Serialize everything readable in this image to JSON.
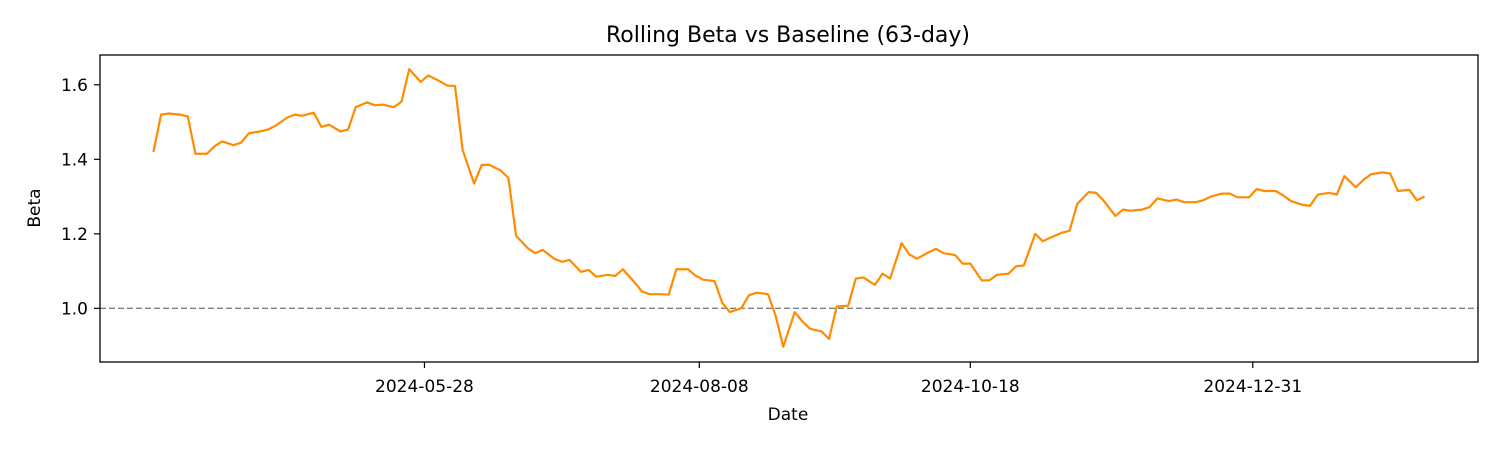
{
  "chart_data": {
    "type": "line",
    "title": "Rolling Beta vs Baseline (63-day)",
    "xlabel": "Date",
    "ylabel": "Beta",
    "xlim": [
      "2024-03-04",
      "2025-02-28"
    ],
    "ylim": [
      0.856,
      1.68
    ],
    "x_ticks": [
      "2024-05-28",
      "2024-08-08",
      "2024-10-18",
      "2024-12-31"
    ],
    "y_ticks": [
      1.0,
      1.2,
      1.4,
      1.6
    ],
    "y_tick_labels": [
      "1.0",
      "1.2",
      "1.4",
      "1.6"
    ],
    "grid": false,
    "legend": "none",
    "baseline": {
      "value": 1.0,
      "style": "dashed",
      "color": "#808080"
    },
    "series": [
      {
        "color": "#ff8c00",
        "points": [
          [
            "2024-03-18",
            1.42
          ],
          [
            "2024-03-20",
            1.52
          ],
          [
            "2024-03-22",
            1.523
          ],
          [
            "2024-03-25",
            1.52
          ],
          [
            "2024-03-27",
            1.515
          ],
          [
            "2024-03-29",
            1.415
          ],
          [
            "2024-04-01",
            1.415
          ],
          [
            "2024-04-03",
            1.435
          ],
          [
            "2024-04-05",
            1.448
          ],
          [
            "2024-04-08",
            1.438
          ],
          [
            "2024-04-10",
            1.445
          ],
          [
            "2024-04-12",
            1.47
          ],
          [
            "2024-04-15",
            1.475
          ],
          [
            "2024-04-17",
            1.48
          ],
          [
            "2024-04-19",
            1.49
          ],
          [
            "2024-04-22",
            1.512
          ],
          [
            "2024-04-24",
            1.52
          ],
          [
            "2024-04-26",
            1.517
          ],
          [
            "2024-04-29",
            1.525
          ],
          [
            "2024-05-01",
            1.487
          ],
          [
            "2024-05-03",
            1.493
          ],
          [
            "2024-05-06",
            1.475
          ],
          [
            "2024-05-08",
            1.48
          ],
          [
            "2024-05-10",
            1.54
          ],
          [
            "2024-05-13",
            1.553
          ],
          [
            "2024-05-15",
            1.545
          ],
          [
            "2024-05-17",
            1.547
          ],
          [
            "2024-05-20",
            1.54
          ],
          [
            "2024-05-22",
            1.555
          ],
          [
            "2024-05-24",
            1.642
          ],
          [
            "2024-05-27",
            1.608
          ],
          [
            "2024-05-29",
            1.625
          ],
          [
            "2024-05-31",
            1.615
          ],
          [
            "2024-06-03",
            1.598
          ],
          [
            "2024-06-05",
            1.597
          ],
          [
            "2024-06-07",
            1.425
          ],
          [
            "2024-06-10",
            1.335
          ],
          [
            "2024-06-12",
            1.385
          ],
          [
            "2024-06-14",
            1.385
          ],
          [
            "2024-06-17",
            1.37
          ],
          [
            "2024-06-19",
            1.35
          ],
          [
            "2024-06-21",
            1.195
          ],
          [
            "2024-06-24",
            1.162
          ],
          [
            "2024-06-26",
            1.148
          ],
          [
            "2024-06-28",
            1.157
          ],
          [
            "2024-07-01",
            1.133
          ],
          [
            "2024-07-03",
            1.125
          ],
          [
            "2024-07-05",
            1.13
          ],
          [
            "2024-07-08",
            1.098
          ],
          [
            "2024-07-10",
            1.103
          ],
          [
            "2024-07-12",
            1.085
          ],
          [
            "2024-07-15",
            1.09
          ],
          [
            "2024-07-17",
            1.087
          ],
          [
            "2024-07-19",
            1.105
          ],
          [
            "2024-07-22",
            1.07
          ],
          [
            "2024-07-24",
            1.045
          ],
          [
            "2024-07-26",
            1.038
          ],
          [
            "2024-07-29",
            1.038
          ],
          [
            "2024-07-31",
            1.037
          ],
          [
            "2024-08-02",
            1.105
          ],
          [
            "2024-08-05",
            1.105
          ],
          [
            "2024-08-07",
            1.088
          ],
          [
            "2024-08-09",
            1.077
          ],
          [
            "2024-08-12",
            1.073
          ],
          [
            "2024-08-14",
            1.015
          ],
          [
            "2024-08-16",
            0.99
          ],
          [
            "2024-08-19",
            1.0
          ],
          [
            "2024-08-21",
            1.035
          ],
          [
            "2024-08-23",
            1.042
          ],
          [
            "2024-08-26",
            1.038
          ],
          [
            "2024-08-28",
            0.98
          ],
          [
            "2024-08-30",
            0.897
          ],
          [
            "2024-09-02",
            0.99
          ],
          [
            "2024-09-04",
            0.965
          ],
          [
            "2024-09-06",
            0.945
          ],
          [
            "2024-09-09",
            0.938
          ],
          [
            "2024-09-11",
            0.918
          ],
          [
            "2024-09-13",
            1.005
          ],
          [
            "2024-09-16",
            1.007
          ],
          [
            "2024-09-18",
            1.08
          ],
          [
            "2024-09-20",
            1.083
          ],
          [
            "2024-09-23",
            1.063
          ],
          [
            "2024-09-25",
            1.093
          ],
          [
            "2024-09-27",
            1.08
          ],
          [
            "2024-09-30",
            1.175
          ],
          [
            "2024-10-02",
            1.145
          ],
          [
            "2024-10-04",
            1.133
          ],
          [
            "2024-10-07",
            1.15
          ],
          [
            "2024-10-09",
            1.16
          ],
          [
            "2024-10-11",
            1.148
          ],
          [
            "2024-10-14",
            1.143
          ],
          [
            "2024-10-16",
            1.12
          ],
          [
            "2024-10-18",
            1.12
          ],
          [
            "2024-10-21",
            1.075
          ],
          [
            "2024-10-23",
            1.075
          ],
          [
            "2024-10-25",
            1.09
          ],
          [
            "2024-10-28",
            1.093
          ],
          [
            "2024-10-30",
            1.113
          ],
          [
            "2024-11-01",
            1.115
          ],
          [
            "2024-11-04",
            1.2
          ],
          [
            "2024-11-06",
            1.18
          ],
          [
            "2024-11-08",
            1.19
          ],
          [
            "2024-11-11",
            1.203
          ],
          [
            "2024-11-13",
            1.208
          ],
          [
            "2024-11-15",
            1.28
          ],
          [
            "2024-11-18",
            1.312
          ],
          [
            "2024-11-20",
            1.31
          ],
          [
            "2024-11-22",
            1.288
          ],
          [
            "2024-11-25",
            1.248
          ],
          [
            "2024-11-27",
            1.265
          ],
          [
            "2024-11-29",
            1.262
          ],
          [
            "2024-12-02",
            1.265
          ],
          [
            "2024-12-04",
            1.272
          ],
          [
            "2024-12-06",
            1.295
          ],
          [
            "2024-12-09",
            1.288
          ],
          [
            "2024-12-11",
            1.292
          ],
          [
            "2024-12-13",
            1.285
          ],
          [
            "2024-12-16",
            1.285
          ],
          [
            "2024-12-18",
            1.29
          ],
          [
            "2024-12-20",
            1.3
          ],
          [
            "2024-12-23",
            1.308
          ],
          [
            "2024-12-25",
            1.308
          ],
          [
            "2024-12-27",
            1.298
          ],
          [
            "2024-12-30",
            1.298
          ],
          [
            "2025-01-01",
            1.32
          ],
          [
            "2025-01-03",
            1.315
          ],
          [
            "2025-01-06",
            1.315
          ],
          [
            "2025-01-08",
            1.303
          ],
          [
            "2025-01-10",
            1.288
          ],
          [
            "2025-01-13",
            1.278
          ],
          [
            "2025-01-15",
            1.275
          ],
          [
            "2025-01-17",
            1.305
          ],
          [
            "2025-01-20",
            1.31
          ],
          [
            "2025-01-22",
            1.305
          ],
          [
            "2025-01-24",
            1.355
          ],
          [
            "2025-01-27",
            1.325
          ],
          [
            "2025-01-29",
            1.345
          ],
          [
            "2025-01-31",
            1.36
          ],
          [
            "2025-02-03",
            1.365
          ],
          [
            "2025-02-05",
            1.362
          ],
          [
            "2025-02-07",
            1.315
          ],
          [
            "2025-02-10",
            1.318
          ],
          [
            "2025-02-12",
            1.29
          ],
          [
            "2025-02-14",
            1.3
          ]
        ]
      }
    ]
  }
}
